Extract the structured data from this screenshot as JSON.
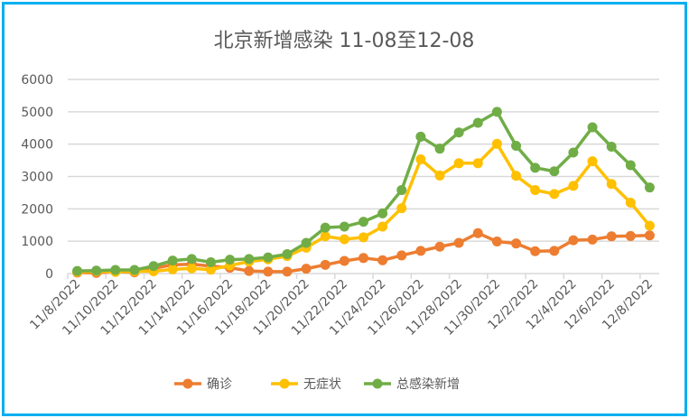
{
  "chart_data": {
    "type": "line",
    "title": "北京新增感染 11-08至12-08",
    "xlabel": "",
    "ylabel": "",
    "ylim": [
      0,
      6000
    ],
    "yticks": [
      0,
      1000,
      2000,
      3000,
      4000,
      5000,
      6000
    ],
    "grid": true,
    "legend_position": "bottom",
    "x": [
      "11/8/2022",
      "11/9/2022",
      "11/10/2022",
      "11/11/2022",
      "11/12/2022",
      "11/13/2022",
      "11/14/2022",
      "11/15/2022",
      "11/16/2022",
      "11/17/2022",
      "11/18/2022",
      "11/19/2022",
      "11/20/2022",
      "11/21/2022",
      "11/22/2022",
      "11/23/2022",
      "11/24/2022",
      "11/25/2022",
      "11/26/2022",
      "11/27/2022",
      "11/28/2022",
      "11/29/2022",
      "11/30/2022",
      "12/1/2022",
      "12/2/2022",
      "12/3/2022",
      "12/4/2022",
      "12/5/2022",
      "12/6/2022",
      "12/7/2022",
      "12/8/2022"
    ],
    "series": [
      {
        "name": "确诊",
        "color": "#ed7d31",
        "values": [
          30,
          20,
          60,
          40,
          160,
          270,
          290,
          230,
          180,
          80,
          60,
          60,
          150,
          270,
          390,
          480,
          410,
          560,
          700,
          830,
          950,
          1250,
          990,
          930,
          690,
          700,
          1030,
          1050,
          1150,
          1160,
          1180
        ]
      },
      {
        "name": "无症状",
        "color": "#ffc000",
        "values": [
          50,
          70,
          50,
          70,
          70,
          130,
          160,
          120,
          250,
          370,
          440,
          540,
          800,
          1150,
          1060,
          1120,
          1450,
          2020,
          3530,
          3030,
          3410,
          3410,
          4010,
          3020,
          2580,
          2460,
          2710,
          3470,
          2770,
          2190,
          1480
        ]
      },
      {
        "name": "总感染新增",
        "color": "#70ad47",
        "values": [
          80,
          90,
          110,
          110,
          230,
          400,
          450,
          350,
          430,
          450,
          500,
          600,
          950,
          1420,
          1450,
          1600,
          1860,
          2580,
          4230,
          3860,
          4360,
          4660,
          5000,
          3950,
          3270,
          3160,
          3740,
          4520,
          3920,
          3350,
          2660
        ]
      }
    ]
  }
}
